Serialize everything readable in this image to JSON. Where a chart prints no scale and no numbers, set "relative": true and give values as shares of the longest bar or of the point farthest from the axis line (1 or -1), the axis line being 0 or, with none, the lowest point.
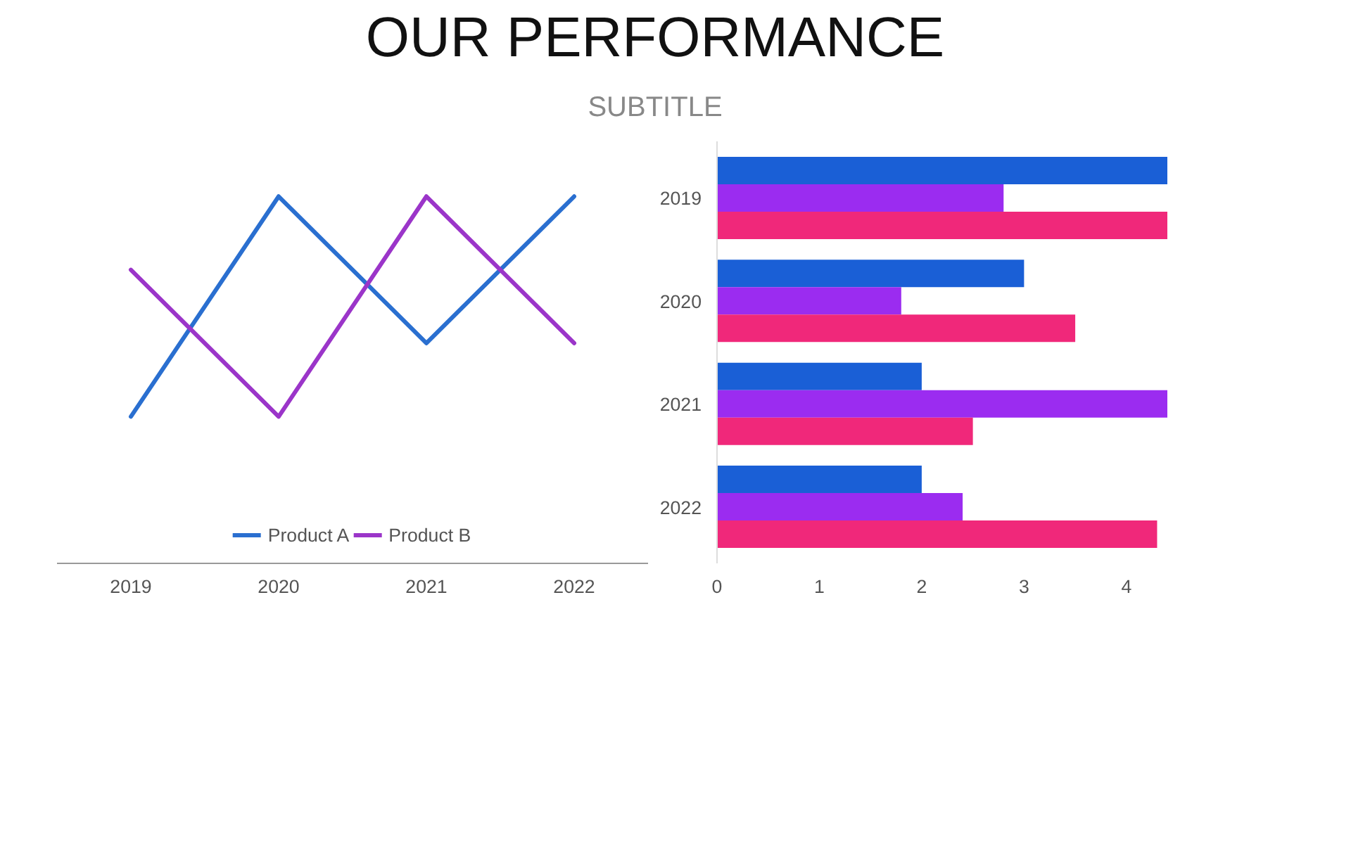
{
  "chart_data": [
    {
      "type": "line",
      "title": "OUR PERFORMANCE",
      "subtitle": "SUBTITLE",
      "categories": [
        "2019",
        "2020",
        "2021",
        "2022"
      ],
      "relative": true,
      "legend": "bottom",
      "line_style": "solid",
      "series": [
        {
          "name": "Product A",
          "color": "#2a6fd0",
          "values": [
            0.4,
            1.0,
            0.6,
            1.0
          ]
        },
        {
          "name": "Product B",
          "color": "#9b35c9",
          "values": [
            0.8,
            0.4,
            1.0,
            0.6
          ]
        }
      ]
    },
    {
      "type": "bar",
      "orientation": "horizontal",
      "categories": [
        "2019",
        "2020",
        "2021",
        "2022"
      ],
      "xlim": [
        0,
        4.4
      ],
      "xticks": [
        0,
        1,
        2,
        3,
        4
      ],
      "series": [
        {
          "color": "#1a5fd6",
          "values": [
            4.4,
            3.0,
            2.0,
            2.0
          ]
        },
        {
          "color": "#9b2cf0",
          "values": [
            2.8,
            1.8,
            4.4,
            2.4
          ]
        },
        {
          "color": "#f0287a",
          "values": [
            4.4,
            3.5,
            2.5,
            4.3
          ]
        }
      ]
    }
  ]
}
